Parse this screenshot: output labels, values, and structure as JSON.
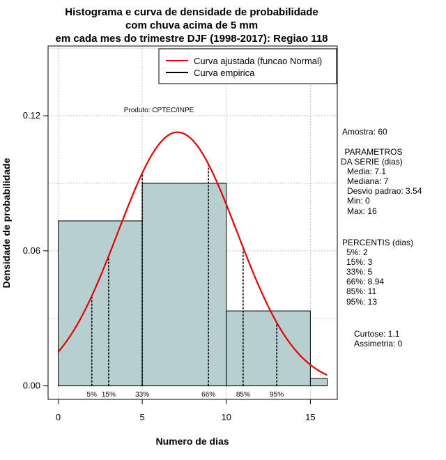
{
  "chart_data": {
    "type": "bar",
    "title_lines": [
      "Histograma e curva de densidade de probabilidade",
      "com chuva acima de 5 mm",
      "em cada mes do trimestre DJF (1998-2017): Regiao 118"
    ],
    "xlabel": "Numero de dias",
    "ylabel": "Densidade de probabilidade",
    "xlim": [
      -0.6,
      16.6
    ],
    "ylim": [
      -0.006,
      0.151
    ],
    "xticks": [
      "0",
      "5",
      "10",
      "15"
    ],
    "xtick_values": [
      0,
      5,
      10,
      15
    ],
    "yticks": [
      "0.00",
      "0.06",
      "0.12"
    ],
    "ytick_values": [
      0,
      0.06,
      0.12
    ],
    "bins": [
      {
        "start": 0,
        "end": 5,
        "density": 0.0733
      },
      {
        "start": 5,
        "end": 10,
        "density": 0.09
      },
      {
        "start": 10,
        "end": 15,
        "density": 0.0333
      },
      {
        "start": 15,
        "end": 16,
        "density": 0.0033
      }
    ],
    "normal_fit": {
      "mean": 7.1,
      "sd": 3.54,
      "x_from": 0,
      "x_to": 16
    },
    "percentile_lines": [
      {
        "label": "5%",
        "x": 2
      },
      {
        "label": "15%",
        "x": 3
      },
      {
        "label": "33%",
        "x": 5
      },
      {
        "label": "66%",
        "x": 8.94
      },
      {
        "label": "85%",
        "x": 11
      },
      {
        "label": "95%",
        "x": 13
      }
    ],
    "grid_y": [
      0.06,
      0.12
    ],
    "legend": {
      "position": "top-right",
      "entries": [
        {
          "label": "Curva ajustada (funcao Normal)",
          "color": "#e00000"
        },
        {
          "label": "Curva empirica",
          "color": "#000000"
        }
      ]
    },
    "annotation": "Produto: CPTEC/INPE",
    "colors": {
      "bar_fill": "#b8cfcf",
      "curve": "#e00000",
      "grid": "#b0b0b0",
      "axis": "#000000"
    }
  },
  "side_panel": {
    "sample": "Amostra: 60",
    "params_title": " PARAMETROS",
    "params_subtitle": "DA SERIE (dias)",
    "params": [
      "Media: 7.1",
      "Mediana: 7",
      "Desvio padrao: 3.54",
      "Min: 0",
      "Max: 16"
    ],
    "percentis_title": "PERCENTIS (dias)",
    "percentis": [
      "5%: 2",
      "15%: 3",
      "33%: 5",
      "66%: 8.94",
      "85%: 11",
      "95%: 13"
    ],
    "kurtosis": "Curtose: 1.1",
    "skewness": "Assimetria: 0"
  }
}
